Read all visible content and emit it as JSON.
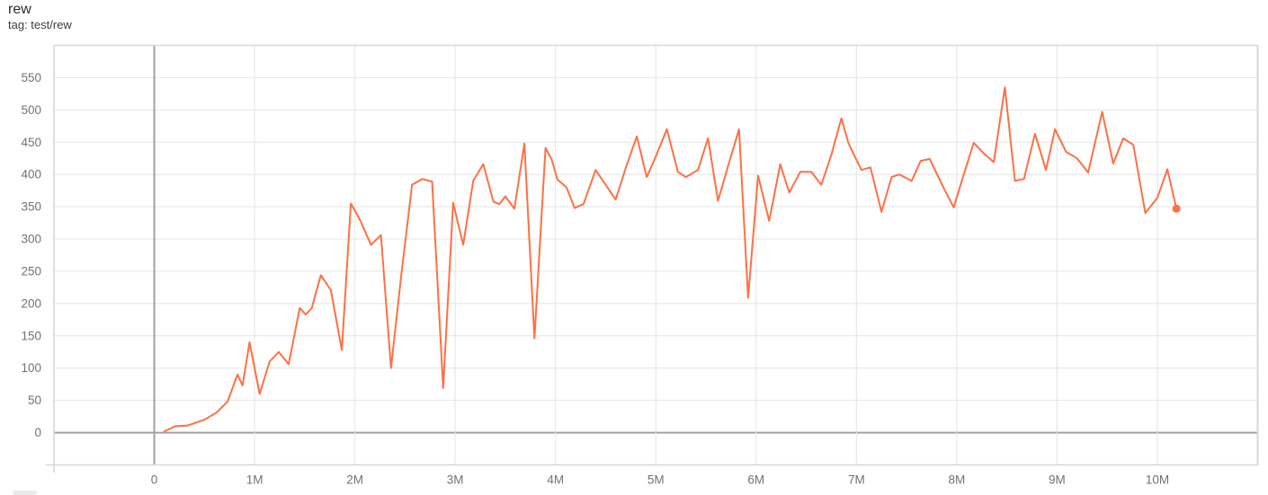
{
  "header": {
    "title": "rew",
    "subtitle": "tag: test/rew"
  },
  "colors": {
    "background": "#ffffff",
    "line": "#ff7043",
    "grid": "#e4e4e4",
    "zero_line": "#a0a0a0",
    "edge": "#d7d7d7",
    "tick_label": "#6f7276",
    "title_text": "#2b2b2b",
    "subtitle_text": "#3d3d3d"
  },
  "chart_data": {
    "type": "line",
    "title": "rew",
    "tag": "test/rew",
    "xlabel": "",
    "ylabel": "",
    "x_unit": "steps (millions)",
    "xlim": [
      -1,
      11
    ],
    "ylim": [
      -50,
      600
    ],
    "grid": true,
    "legend_position": "none",
    "x_ticks": [
      {
        "value": 0,
        "label": "0"
      },
      {
        "value": 1,
        "label": "1M"
      },
      {
        "value": 2,
        "label": "2M"
      },
      {
        "value": 3,
        "label": "3M"
      },
      {
        "value": 4,
        "label": "4M"
      },
      {
        "value": 5,
        "label": "5M"
      },
      {
        "value": 6,
        "label": "6M"
      },
      {
        "value": 7,
        "label": "7M"
      },
      {
        "value": 8,
        "label": "8M"
      },
      {
        "value": 9,
        "label": "9M"
      },
      {
        "value": 10,
        "label": "10M"
      }
    ],
    "y_ticks": [
      {
        "value": 0,
        "label": "0"
      },
      {
        "value": 50,
        "label": "50"
      },
      {
        "value": 100,
        "label": "100"
      },
      {
        "value": 150,
        "label": "150"
      },
      {
        "value": 200,
        "label": "200"
      },
      {
        "value": 250,
        "label": "250"
      },
      {
        "value": 300,
        "label": "300"
      },
      {
        "value": 350,
        "label": "350"
      },
      {
        "value": 400,
        "label": "400"
      },
      {
        "value": 450,
        "label": "450"
      },
      {
        "value": 500,
        "label": "500"
      },
      {
        "value": 550,
        "label": "550"
      }
    ],
    "series": [
      {
        "name": "test/rew",
        "color": "#ff7043",
        "end_dot": true,
        "points": [
          [
            0.1,
            2
          ],
          [
            0.21,
            10
          ],
          [
            0.33,
            11
          ],
          [
            0.5,
            20
          ],
          [
            0.62,
            31
          ],
          [
            0.73,
            48
          ],
          [
            0.83,
            90
          ],
          [
            0.88,
            73
          ],
          [
            0.95,
            140
          ],
          [
            1.05,
            60
          ],
          [
            1.15,
            110
          ],
          [
            1.24,
            125
          ],
          [
            1.34,
            106
          ],
          [
            1.45,
            193
          ],
          [
            1.51,
            183
          ],
          [
            1.57,
            193
          ],
          [
            1.66,
            244
          ],
          [
            1.76,
            221
          ],
          [
            1.87,
            128
          ],
          [
            1.96,
            355
          ],
          [
            2.05,
            330
          ],
          [
            2.16,
            291
          ],
          [
            2.26,
            306
          ],
          [
            2.36,
            100
          ],
          [
            2.46,
            240
          ],
          [
            2.57,
            384
          ],
          [
            2.67,
            393
          ],
          [
            2.77,
            389
          ],
          [
            2.88,
            69
          ],
          [
            2.98,
            356
          ],
          [
            3.08,
            291
          ],
          [
            3.18,
            390
          ],
          [
            3.28,
            416
          ],
          [
            3.38,
            358
          ],
          [
            3.44,
            354
          ],
          [
            3.5,
            366
          ],
          [
            3.59,
            347
          ],
          [
            3.69,
            448
          ],
          [
            3.79,
            146
          ],
          [
            3.9,
            441
          ],
          [
            3.96,
            424
          ],
          [
            4.02,
            392
          ],
          [
            4.11,
            380
          ],
          [
            4.19,
            348
          ],
          [
            4.28,
            354
          ],
          [
            4.4,
            407
          ],
          [
            4.5,
            384
          ],
          [
            4.6,
            361
          ],
          [
            4.7,
            410
          ],
          [
            4.81,
            459
          ],
          [
            4.91,
            396
          ],
          [
            5.0,
            428
          ],
          [
            5.11,
            470
          ],
          [
            5.22,
            404
          ],
          [
            5.3,
            396
          ],
          [
            5.42,
            407
          ],
          [
            5.52,
            456
          ],
          [
            5.62,
            359
          ],
          [
            5.72,
            413
          ],
          [
            5.83,
            470
          ],
          [
            5.92,
            209
          ],
          [
            6.02,
            398
          ],
          [
            6.13,
            328
          ],
          [
            6.24,
            416
          ],
          [
            6.33,
            372
          ],
          [
            6.44,
            404
          ],
          [
            6.55,
            404
          ],
          [
            6.65,
            384
          ],
          [
            6.75,
            430
          ],
          [
            6.85,
            487
          ],
          [
            6.92,
            449
          ],
          [
            6.97,
            432
          ],
          [
            7.05,
            407
          ],
          [
            7.14,
            411
          ],
          [
            7.25,
            342
          ],
          [
            7.35,
            396
          ],
          [
            7.43,
            400
          ],
          [
            7.55,
            390
          ],
          [
            7.64,
            421
          ],
          [
            7.73,
            424
          ],
          [
            7.87,
            379
          ],
          [
            7.97,
            349
          ],
          [
            8.07,
            400
          ],
          [
            8.17,
            449
          ],
          [
            8.28,
            431
          ],
          [
            8.37,
            419
          ],
          [
            8.48,
            535
          ],
          [
            8.58,
            390
          ],
          [
            8.67,
            393
          ],
          [
            8.78,
            463
          ],
          [
            8.89,
            407
          ],
          [
            8.98,
            470
          ],
          [
            9.09,
            435
          ],
          [
            9.2,
            425
          ],
          [
            9.31,
            403
          ],
          [
            9.45,
            497
          ],
          [
            9.56,
            417
          ],
          [
            9.66,
            456
          ],
          [
            9.76,
            446
          ],
          [
            9.88,
            340
          ],
          [
            10.0,
            364
          ],
          [
            10.1,
            408
          ],
          [
            10.19,
            347
          ]
        ]
      }
    ]
  }
}
